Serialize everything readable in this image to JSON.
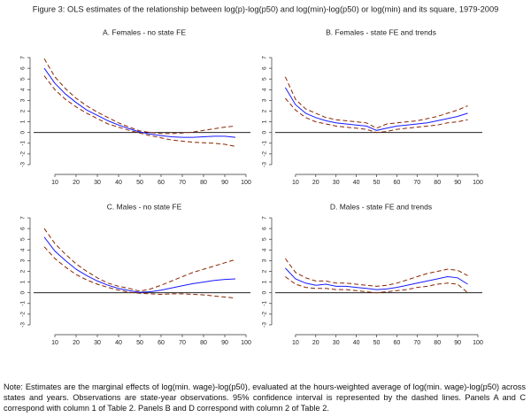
{
  "title": "Figure 3: OLS estimates of the relationship between log(p)-log(p50) and log(min)-log(p50) or log(min) and its square, 1979-2009",
  "chart_data": [
    {
      "type": "line",
      "title": "A. Females - no state FE",
      "x": [
        5,
        10,
        15,
        20,
        25,
        30,
        35,
        40,
        45,
        50,
        55,
        60,
        65,
        70,
        75,
        80,
        85,
        90,
        95
      ],
      "xlim": [
        0,
        100
      ],
      "xticks": [
        10,
        20,
        30,
        40,
        50,
        60,
        70,
        80,
        90,
        100
      ],
      "ylim": [
        -3.5,
        7.5
      ],
      "yticks": [
        -3,
        -2,
        -1,
        0,
        1,
        2,
        3,
        4,
        5,
        6,
        7
      ],
      "series": [
        {
          "color": "#1a1aff",
          "style": "solid",
          "values": [
            6.0,
            4.6,
            3.6,
            2.8,
            2.1,
            1.6,
            1.1,
            0.7,
            0.35,
            0.05,
            -0.15,
            -0.3,
            -0.4,
            -0.45,
            -0.45,
            -0.4,
            -0.35,
            -0.35,
            -0.45
          ]
        },
        {
          "color": "#8b2500",
          "style": "dashed",
          "values": [
            6.9,
            5.2,
            4.1,
            3.2,
            2.5,
            1.9,
            1.4,
            0.9,
            0.5,
            0.15,
            0,
            -0.1,
            -0.1,
            -0.05,
            0.05,
            0.2,
            0.35,
            0.5,
            0.6
          ]
        },
        {
          "color": "#8b2500",
          "style": "dashed",
          "values": [
            5.3,
            4.0,
            3.1,
            2.4,
            1.8,
            1.3,
            0.8,
            0.5,
            0.2,
            -0.05,
            -0.3,
            -0.5,
            -0.7,
            -0.8,
            -0.9,
            -0.95,
            -1.0,
            -1.1,
            -1.3
          ]
        }
      ]
    },
    {
      "type": "line",
      "title": "B. Females - state FE and trends",
      "x": [
        5,
        10,
        15,
        20,
        25,
        30,
        35,
        40,
        45,
        50,
        55,
        60,
        65,
        70,
        75,
        80,
        85,
        90,
        95
      ],
      "xlim": [
        0,
        100
      ],
      "xticks": [
        10,
        20,
        30,
        40,
        50,
        60,
        70,
        80,
        90,
        100
      ],
      "ylim": [
        -3.5,
        7.5
      ],
      "yticks": [
        -3,
        -2,
        -1,
        0,
        1,
        2,
        3,
        4,
        5,
        6,
        7
      ],
      "series": [
        {
          "color": "#1a1aff",
          "style": "solid",
          "values": [
            4.2,
            2.6,
            1.8,
            1.4,
            1.1,
            0.9,
            0.8,
            0.7,
            0.6,
            0.2,
            0.4,
            0.6,
            0.7,
            0.8,
            0.9,
            1.1,
            1.3,
            1.5,
            1.8
          ]
        },
        {
          "color": "#8b2500",
          "style": "dashed",
          "values": [
            5.2,
            3.1,
            2.2,
            1.8,
            1.4,
            1.2,
            1.1,
            1.0,
            0.9,
            0.4,
            0.8,
            0.9,
            1.0,
            1.1,
            1.3,
            1.5,
            1.8,
            2.1,
            2.5
          ]
        },
        {
          "color": "#8b2500",
          "style": "dashed",
          "values": [
            3.2,
            2.1,
            1.4,
            1.0,
            0.8,
            0.6,
            0.5,
            0.4,
            0.3,
            0.0,
            0.1,
            0.3,
            0.4,
            0.5,
            0.6,
            0.7,
            0.9,
            1.0,
            1.2
          ]
        }
      ]
    },
    {
      "type": "line",
      "title": "C. Males - no state FE",
      "x": [
        5,
        10,
        15,
        20,
        25,
        30,
        35,
        40,
        45,
        50,
        55,
        60,
        65,
        70,
        75,
        80,
        85,
        90,
        95
      ],
      "xlim": [
        0,
        100
      ],
      "xticks": [
        10,
        20,
        30,
        40,
        50,
        60,
        70,
        80,
        90,
        100
      ],
      "ylim": [
        -3.5,
        7.5
      ],
      "yticks": [
        -3,
        -2,
        -1,
        0,
        1,
        2,
        3,
        4,
        5,
        6,
        7
      ],
      "series": [
        {
          "color": "#1a1aff",
          "style": "solid",
          "values": [
            5.2,
            3.9,
            3.0,
            2.2,
            1.6,
            1.1,
            0.7,
            0.4,
            0.2,
            0.05,
            0.1,
            0.25,
            0.45,
            0.65,
            0.85,
            1.0,
            1.15,
            1.25,
            1.3
          ]
        },
        {
          "color": "#8b2500",
          "style": "dashed",
          "values": [
            6.0,
            4.6,
            3.6,
            2.7,
            2.0,
            1.4,
            0.9,
            0.6,
            0.4,
            0.15,
            0.35,
            0.7,
            1.1,
            1.5,
            1.9,
            2.2,
            2.5,
            2.8,
            3.1
          ]
        },
        {
          "color": "#8b2500",
          "style": "dashed",
          "values": [
            4.3,
            3.2,
            2.4,
            1.7,
            1.2,
            0.8,
            0.5,
            0.25,
            0.05,
            -0.05,
            -0.1,
            -0.15,
            -0.1,
            -0.1,
            -0.15,
            -0.2,
            -0.3,
            -0.4,
            -0.5
          ]
        }
      ]
    },
    {
      "type": "line",
      "title": "D. Males - state FE and trends",
      "x": [
        5,
        10,
        15,
        20,
        25,
        30,
        35,
        40,
        45,
        50,
        55,
        60,
        65,
        70,
        75,
        80,
        85,
        90,
        95
      ],
      "xlim": [
        0,
        100
      ],
      "xticks": [
        10,
        20,
        30,
        40,
        50,
        60,
        70,
        80,
        90,
        100
      ],
      "ylim": [
        -3.5,
        7.5
      ],
      "yticks": [
        -3,
        -2,
        -1,
        0,
        1,
        2,
        3,
        4,
        5,
        6,
        7
      ],
      "series": [
        {
          "color": "#1a1aff",
          "style": "solid",
          "values": [
            2.3,
            1.3,
            0.9,
            0.7,
            0.8,
            0.6,
            0.6,
            0.5,
            0.4,
            0.3,
            0.35,
            0.5,
            0.7,
            0.9,
            1.1,
            1.3,
            1.5,
            1.4,
            0.8
          ]
        },
        {
          "color": "#8b2500",
          "style": "dashed",
          "values": [
            3.2,
            1.9,
            1.4,
            1.1,
            1.1,
            0.9,
            0.9,
            0.8,
            0.7,
            0.6,
            0.7,
            0.9,
            1.2,
            1.5,
            1.8,
            2.0,
            2.2,
            2.1,
            1.6
          ]
        },
        {
          "color": "#8b2500",
          "style": "dashed",
          "values": [
            1.5,
            0.8,
            0.5,
            0.4,
            0.4,
            0.3,
            0.3,
            0.2,
            0.1,
            0.0,
            0.1,
            0.2,
            0.3,
            0.5,
            0.6,
            0.8,
            0.9,
            0.8,
            0.0
          ]
        }
      ]
    }
  ],
  "note": "Note: Estimates are the marginal effects of log(min. wage)-log(p50), evaluated at the hours-weighted average of log(min. wage)-log(p50) across states and years. Observations are state-year observations. 95% confidence interval is represented by the dashed lines. Panels A and C correspond with column 1 of Table 2. Panels B and D correspond with column 2 of Table 2."
}
